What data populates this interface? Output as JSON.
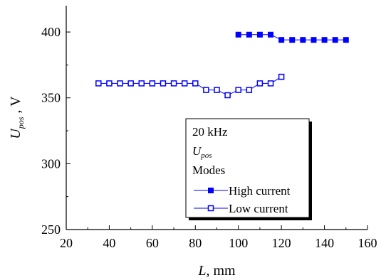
{
  "chart_data": {
    "type": "scatter",
    "xlabel": {
      "main": "L",
      "unit": ", mm"
    },
    "ylabel": {
      "main": "U",
      "sub": "pos",
      "unit": " , V"
    },
    "xlim": [
      20,
      160
    ],
    "ylim": [
      250,
      420
    ],
    "xticks": [
      20,
      40,
      60,
      80,
      100,
      120,
      140,
      160
    ],
    "yticks": [
      250,
      300,
      350,
      400
    ],
    "legend_position": "center-right",
    "legend": {
      "line1": "20 kHz",
      "line2_main": "U",
      "line2_sub": "pos",
      "line3": "Modes"
    },
    "series": [
      {
        "name": "High current",
        "marker": "filled-square",
        "color": "#0000ff",
        "x": [
          100,
          105,
          110,
          115,
          120,
          125,
          130,
          135,
          140,
          145,
          150
        ],
        "y": [
          398,
          398,
          398,
          398,
          394,
          394,
          394,
          394,
          394,
          394,
          394
        ]
      },
      {
        "name": "Low current",
        "marker": "open-square",
        "color": "#0000ff",
        "x": [
          35,
          40,
          45,
          50,
          55,
          60,
          65,
          70,
          75,
          80,
          85,
          90,
          95,
          100,
          105,
          110,
          115,
          120
        ],
        "y": [
          361,
          361,
          361,
          361,
          361,
          361,
          361,
          361,
          361,
          361,
          356,
          356,
          352,
          356,
          356,
          361,
          361,
          366
        ]
      }
    ]
  }
}
